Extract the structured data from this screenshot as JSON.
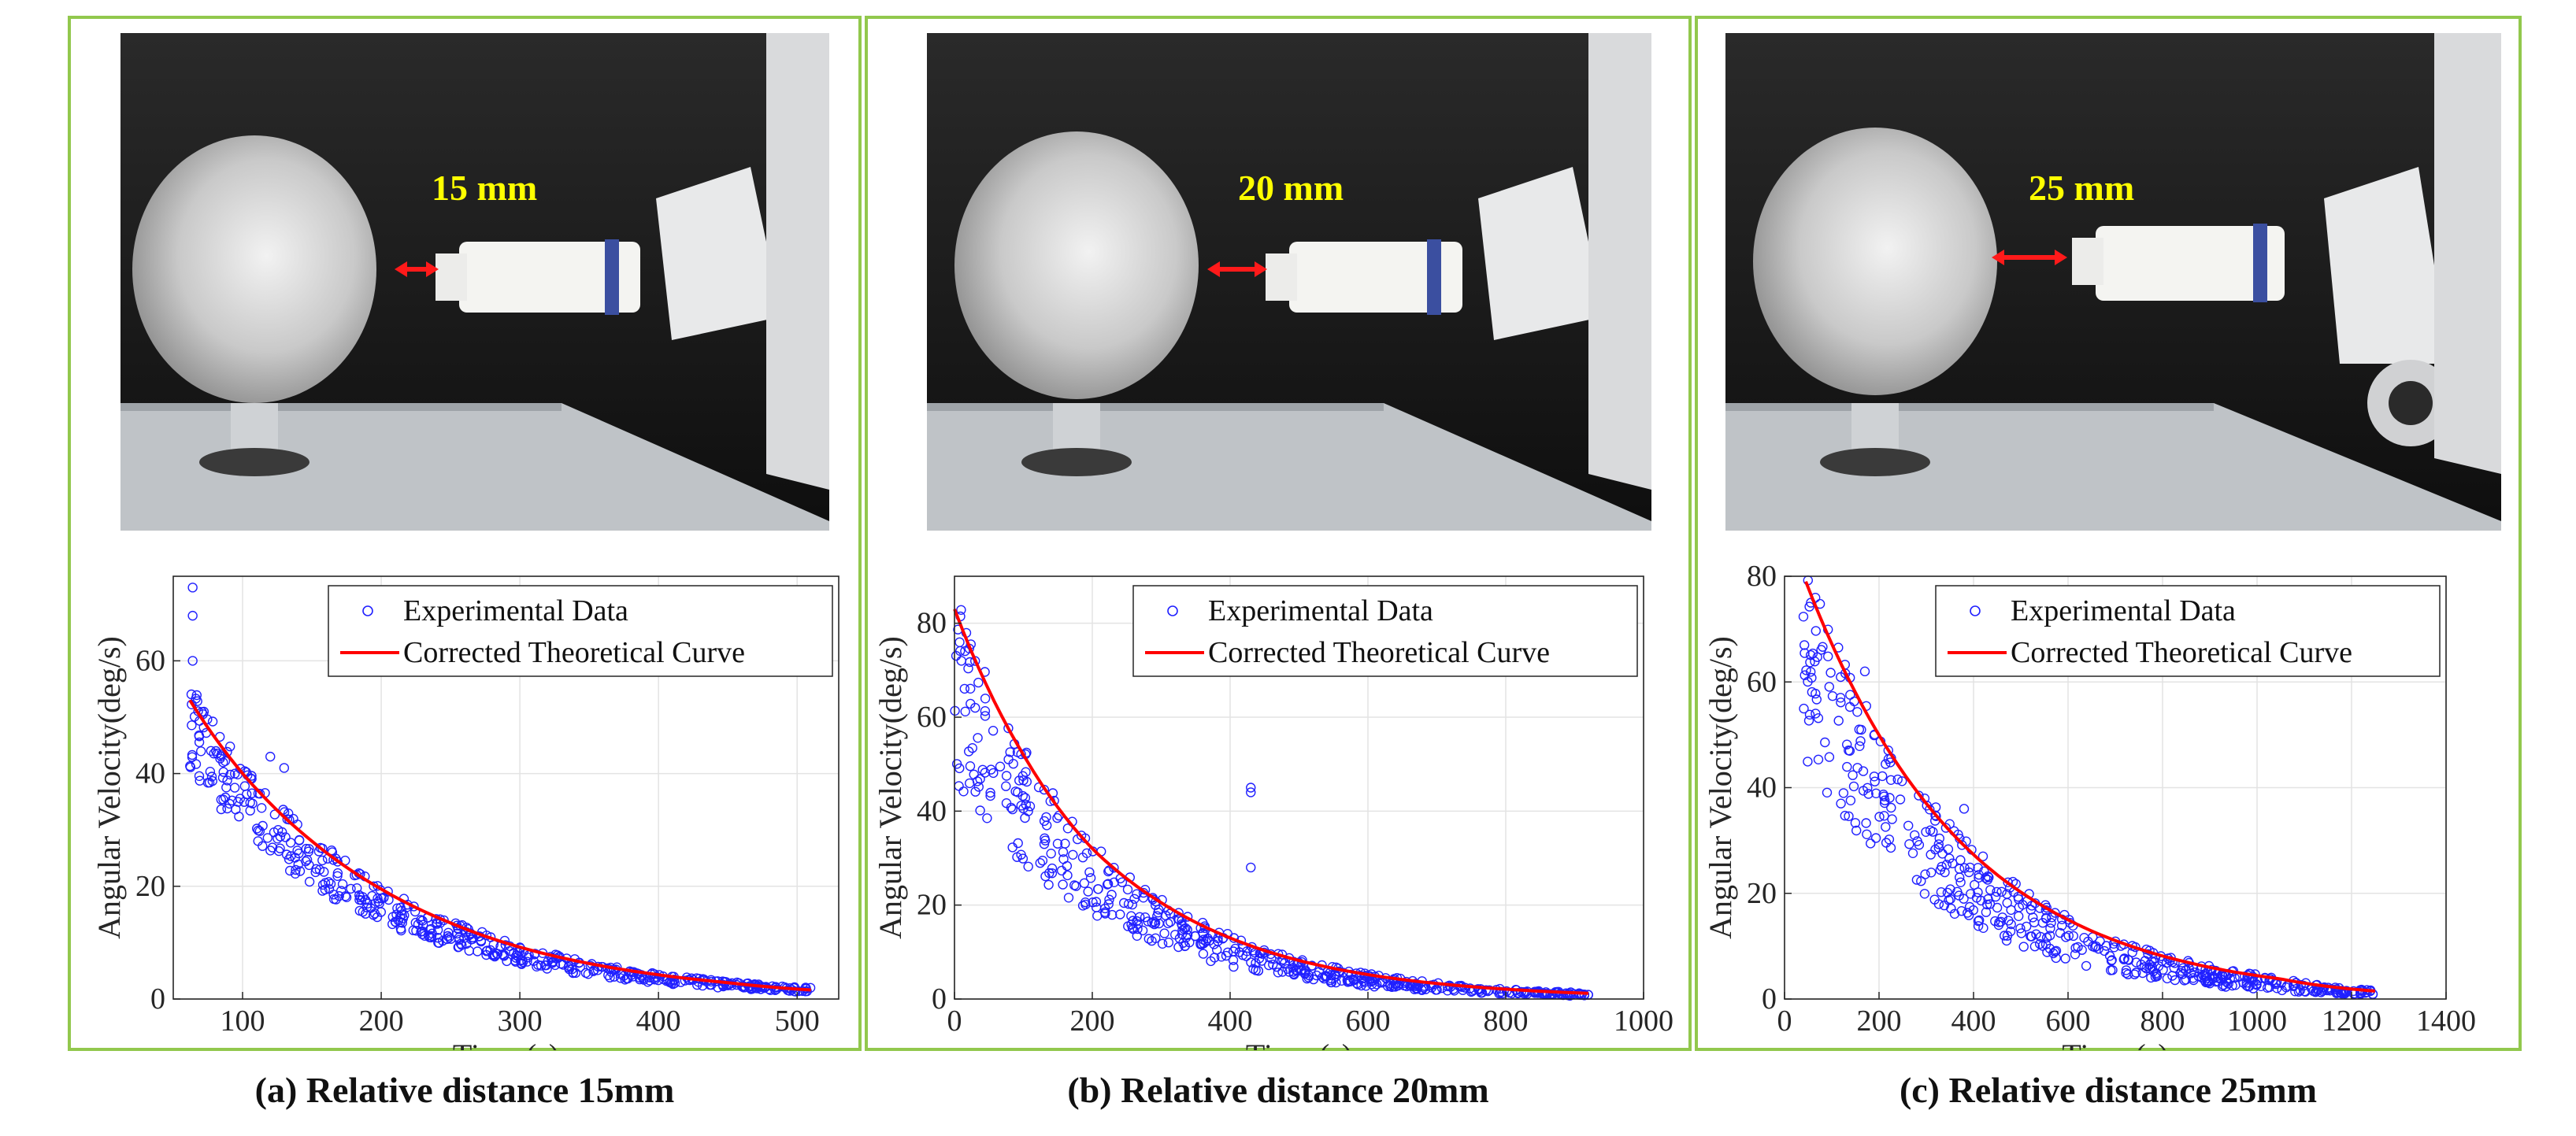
{
  "colors": {
    "panel_border": "#92c84d",
    "marker": "#2020ff",
    "curve": "#ff0000",
    "distance_label": "#ffff00",
    "arrow": "#ff1a1a"
  },
  "panels": [
    {
      "id": "a",
      "caption": "(a) Relative distance 15mm",
      "distance_label": "15 mm",
      "photo_alt": "Aluminium sphere on mounting plate with robot arm sensor at 15 mm"
    },
    {
      "id": "b",
      "caption": "(b) Relative distance 20mm",
      "distance_label": "20 mm",
      "photo_alt": "Aluminium sphere on mounting plate with robot arm sensor at 20 mm"
    },
    {
      "id": "c",
      "caption": "(c) Relative distance 25mm",
      "distance_label": "25 mm",
      "photo_alt": "Aluminium sphere on mounting plate with robot arm sensor at 25 mm"
    }
  ],
  "chart_data": [
    {
      "type": "scatter",
      "title": "",
      "xlabel": "Time (s)",
      "ylabel": "Angular Velocity(deg/s)",
      "xlim": [
        50,
        530
      ],
      "ylim": [
        0,
        75
      ],
      "xticks": [
        100,
        200,
        300,
        400,
        500
      ],
      "yticks": [
        0,
        20,
        40,
        60
      ],
      "grid": true,
      "legend": {
        "position": "top-right",
        "entries": [
          "Experimental Data",
          "Corrected Theoretical Curve"
        ]
      },
      "series": [
        {
          "name": "Experimental Data",
          "kind": "scatter",
          "x_start": 62,
          "x_end": 510,
          "envelope_low": [
            40,
            1.2
          ],
          "envelope_high": [
            56,
            2.0
          ],
          "outliers": [
            [
              64,
              73
            ],
            [
              64,
              68
            ],
            [
              64,
              60
            ],
            [
              120,
              43
            ],
            [
              130,
              41
            ]
          ]
        },
        {
          "name": "Corrected Theoretical Curve",
          "kind": "line",
          "x": [
            62,
            100,
            150,
            200,
            250,
            300,
            350,
            400,
            450,
            510
          ],
          "y": [
            53,
            40,
            28,
            19.5,
            13.5,
            9.2,
            6.3,
            4.3,
            2.9,
            1.6
          ]
        }
      ]
    },
    {
      "type": "scatter",
      "title": "",
      "xlabel": "Time (s)",
      "ylabel": "Angular Velocity(deg/s)",
      "xlim": [
        0,
        1000
      ],
      "ylim": [
        0,
        90
      ],
      "xticks": [
        0,
        200,
        400,
        600,
        800,
        1000
      ],
      "yticks": [
        0,
        20,
        40,
        60,
        80
      ],
      "grid": true,
      "legend": {
        "position": "top-right",
        "entries": [
          "Experimental Data",
          "Corrected Theoretical Curve"
        ]
      },
      "series": [
        {
          "name": "Experimental Data",
          "kind": "scatter",
          "x_start": 0,
          "x_end": 920,
          "envelope_low": [
            46,
            0.6
          ],
          "envelope_high": [
            70,
            1.2
          ],
          "outliers": [
            [
              430,
              45
            ],
            [
              430,
              44
            ],
            [
              430,
              28
            ],
            [
              10,
              72
            ],
            [
              30,
              62
            ]
          ]
        },
        {
          "name": "Corrected Theoretical Curve",
          "kind": "line",
          "x": [
            0,
            100,
            200,
            300,
            400,
            500,
            600,
            700,
            800,
            920
          ],
          "y": [
            83,
            52,
            32,
            20.5,
            13,
            8.2,
            5.2,
            3.3,
            2.1,
            1.2
          ]
        }
      ]
    },
    {
      "type": "scatter",
      "title": "",
      "xlabel": "Time (s)",
      "ylabel": "Angular Velocity(deg/s)",
      "xlim": [
        0,
        1400
      ],
      "ylim": [
        0,
        80
      ],
      "xticks": [
        0,
        200,
        400,
        600,
        800,
        1000,
        1200,
        1400
      ],
      "yticks": [
        0,
        20,
        40,
        60,
        80
      ],
      "grid": true,
      "legend": {
        "position": "top-right",
        "entries": [
          "Experimental Data",
          "Corrected Theoretical Curve"
        ]
      },
      "series": [
        {
          "name": "Experimental Data",
          "kind": "scatter",
          "x_start": 40,
          "x_end": 1250,
          "envelope_low": [
            46,
            0.8
          ],
          "envelope_high": [
            73,
            1.5
          ],
          "outliers": [
            [
              170,
              62
            ],
            [
              420,
              27
            ],
            [
              380,
              36
            ]
          ]
        },
        {
          "name": "Corrected Theoretical Curve",
          "kind": "line",
          "x": [
            45,
            150,
            300,
            450,
            600,
            750,
            900,
            1050,
            1250
          ],
          "y": [
            79,
            58,
            37,
            23.5,
            15,
            9.5,
            6,
            3.8,
            1.5
          ]
        }
      ]
    }
  ]
}
